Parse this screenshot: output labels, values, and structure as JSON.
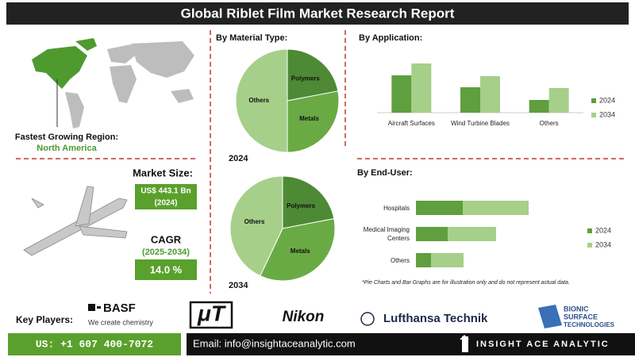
{
  "header": {
    "title": "Global Riblet Film Market Research Report"
  },
  "region": {
    "label": "Fastest Growing Region:",
    "value": "North America"
  },
  "market_size": {
    "label": "Market Size:",
    "value": "US$ 443.1 Bn",
    "year": "(2024)"
  },
  "cagr": {
    "label": "CAGR",
    "period": "(2025-2034)",
    "value": "14.0 %"
  },
  "chart_data": [
    {
      "type": "pie",
      "title": "By Material Type:",
      "subtitle": "2024",
      "categories": [
        "Polymers",
        "Metals",
        "Others"
      ],
      "values": [
        22,
        28,
        50
      ],
      "colors": [
        "#4e8a35",
        "#6aaa45",
        "#a6cf8a"
      ]
    },
    {
      "type": "pie",
      "subtitle": "2034",
      "categories": [
        "Polymers",
        "Metals",
        "Others"
      ],
      "values": [
        22,
        35,
        43
      ],
      "colors": [
        "#4e8a35",
        "#6aaa45",
        "#a6cf8a"
      ]
    },
    {
      "type": "bar",
      "title": "By Application:",
      "categories": [
        "Aircraft Surfaces",
        "Wind Turbine Blades",
        "Others"
      ],
      "series": [
        {
          "name": "2024",
          "color": "#5f9f3e",
          "values": [
            47,
            32,
            16
          ]
        },
        {
          "name": "2034",
          "color": "#a6cf8a",
          "values": [
            62,
            46,
            31
          ]
        }
      ]
    },
    {
      "type": "barh",
      "title": "By End-User:",
      "stacked": true,
      "categories": [
        "Hospitals",
        "Medical Imaging Centers",
        "Others"
      ],
      "series": [
        {
          "name": "2024",
          "color": "#5f9f3e",
          "values": [
            59,
            40,
            19
          ]
        },
        {
          "name": "2034",
          "color": "#a6cf8a",
          "values": [
            83,
            61,
            41
          ]
        }
      ],
      "note": "*Pie Charts and Bar Graphs are for illustration only and do not represent actual data."
    }
  ],
  "key_players": {
    "label": "Key Players:",
    "basf": "BASF",
    "basf_tagline": "We create chemistry",
    "mut": "μT",
    "nikon": "Nikon",
    "lufthansa": "Lufthansa Technik",
    "bionic": [
      "BIONIC",
      "SURFACE",
      "TECHNOLOGIES"
    ]
  },
  "footer": {
    "phone": "US: +1 607 400-7072",
    "email": "Email: info@insightaceanalytic.com",
    "brand": "INSIGHT ACE ANALYTIC"
  }
}
